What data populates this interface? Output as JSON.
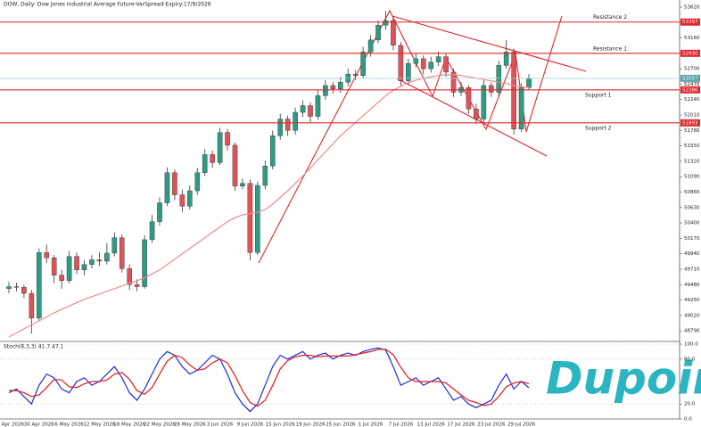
{
  "chart_data": [
    {
      "type": "candlestick",
      "title": "DOW, Daily: Dow Jones Industrial Average Future-VarSpread-Expiry:17/9/2026",
      "categories": [
        "24 Apr 2026",
        null,
        null,
        null,
        "30 Apr 2026",
        null,
        null,
        null,
        "6 May 2026",
        null,
        null,
        null,
        "12 May 2026",
        null,
        null,
        null,
        "18 May 2026",
        null,
        null,
        null,
        "22 May 2026",
        null,
        null,
        null,
        "28 May 2026",
        null,
        null,
        null,
        "3 Jun 2026",
        null,
        null,
        null,
        "9 Jun 2026",
        null,
        null,
        null,
        "15 Jun 2026",
        null,
        null,
        null,
        "19 Jun 2026",
        null,
        null,
        null,
        "25 Jun 2026",
        null,
        null,
        null,
        "1 Jul 2026",
        null,
        null,
        null,
        "7 Jul 2026",
        null,
        null,
        null,
        "13 Jul 2026",
        null,
        null,
        null,
        "17 Jul 2026",
        null,
        null,
        null,
        "23 Jul 2026",
        null,
        null,
        null,
        "29 Jul 2026",
        null
      ],
      "open": [
        49420,
        49450,
        49440,
        49350,
        48980,
        49960,
        49880,
        49620,
        49540,
        49900,
        49700,
        49780,
        49850,
        49830,
        49950,
        50180,
        49720,
        49480,
        49450,
        50150,
        50420,
        50700,
        51150,
        50820,
        50650,
        50880,
        51150,
        51420,
        51300,
        51750,
        51560,
        50950,
        50990,
        49960,
        50960,
        51250,
        51700,
        51950,
        51780,
        52050,
        52150,
        51990,
        52300,
        52450,
        52400,
        52500,
        52620,
        52600,
        52950,
        53130,
        53350,
        53420,
        53050,
        52520,
        52780,
        52850,
        52700,
        52800,
        52880,
        52650,
        52350,
        52420,
        52100,
        51950,
        52450,
        52350,
        52750,
        52950,
        51800,
        52420
      ],
      "high": [
        49520,
        49510,
        49480,
        49400,
        50020,
        50080,
        49920,
        49700,
        49980,
        49960,
        49850,
        49920,
        49960,
        50100,
        50260,
        50230,
        49780,
        49560,
        50220,
        50520,
        50780,
        51230,
        51200,
        50900,
        50960,
        51220,
        51500,
        51480,
        51820,
        51800,
        51600,
        51060,
        51050,
        51020,
        51330,
        51780,
        52030,
        52000,
        52120,
        52230,
        52200,
        52380,
        52530,
        52500,
        52580,
        52700,
        52680,
        53030,
        53200,
        53420,
        53560,
        53470,
        53100,
        52850,
        52930,
        52900,
        52880,
        52960,
        52920,
        52700,
        52500,
        52460,
        52180,
        52530,
        52500,
        52820,
        53130,
        53000,
        52480,
        52620
      ],
      "low": [
        49350,
        49380,
        49280,
        48750,
        48930,
        49800,
        49500,
        49420,
        49500,
        49640,
        49620,
        49720,
        49760,
        49780,
        49900,
        49660,
        49400,
        49380,
        49420,
        50100,
        50360,
        50650,
        50740,
        50560,
        50600,
        50820,
        51100,
        51220,
        51260,
        51480,
        50880,
        50900,
        49840,
        49920,
        50900,
        51200,
        51640,
        51700,
        51720,
        51980,
        51900,
        51940,
        52240,
        52330,
        52340,
        52440,
        52530,
        52560,
        52880,
        53080,
        53280,
        52980,
        52440,
        52460,
        52720,
        52620,
        52640,
        52740,
        52580,
        52280,
        52290,
        52030,
        51880,
        51900,
        52280,
        52300,
        52700,
        51720,
        51760,
        52380
      ],
      "close": [
        49450,
        49440,
        49350,
        48980,
        49960,
        49880,
        49620,
        49540,
        49900,
        49700,
        49780,
        49850,
        49830,
        49950,
        50180,
        49720,
        49480,
        49450,
        50150,
        50420,
        50700,
        51150,
        50820,
        50650,
        50880,
        51150,
        51420,
        51300,
        51750,
        51560,
        50950,
        50990,
        49960,
        50960,
        51250,
        51700,
        51950,
        51780,
        52050,
        52150,
        51990,
        52300,
        52450,
        52400,
        52500,
        52620,
        52600,
        52950,
        53130,
        53350,
        53420,
        53050,
        52520,
        52780,
        52850,
        52700,
        52800,
        52880,
        52650,
        52350,
        52420,
        52100,
        51950,
        52450,
        52350,
        52750,
        52950,
        51800,
        52420,
        52557
      ],
      "up_color": "#2e9c82",
      "down_color": "#e0525a",
      "overlays": [
        {
          "color": "#f08a8a",
          "values": [
            48700,
            48760,
            48820,
            48880,
            48940,
            49000,
            49060,
            49110,
            49160,
            49210,
            49260,
            49300,
            49340,
            49380,
            49420,
            49460,
            49500,
            49540,
            49580,
            49640,
            49700,
            49780,
            49860,
            49940,
            50020,
            50100,
            50180,
            50260,
            50340,
            50420,
            50480,
            50520,
            50540,
            50560,
            50600,
            50680,
            50780,
            50880,
            50990,
            51100,
            51220,
            51340,
            51460,
            51580,
            51700,
            51800,
            51900,
            52000,
            52100,
            52200,
            52300,
            52380,
            52440,
            52490,
            52530,
            52560,
            52580,
            52600,
            52610,
            52610,
            52600,
            52580,
            52560,
            52540,
            52520,
            52500,
            52480,
            52450,
            52430,
            52420
          ]
        }
      ],
      "levels": [
        {
          "label": "Resistance 2",
          "value": 53397,
          "color": "#e0262b"
        },
        {
          "label": "Resistance 1",
          "value": 52930,
          "color": "#e0262b"
        },
        {
          "label": "Support 1",
          "value": 52386,
          "color": "#e0262b"
        },
        {
          "label": "Support 2",
          "value": 51893,
          "color": "#e0262b"
        }
      ],
      "ylim": [
        48646,
        53726
      ],
      "yticks": [
        53620,
        53390,
        53160,
        52930,
        52700,
        52470,
        52240,
        52010,
        51780,
        51550,
        51320,
        51090,
        50860,
        50630,
        50400,
        50170,
        49940,
        49710,
        49480,
        49250,
        49020,
        48790
      ]
    },
    {
      "type": "line",
      "title": "Stoch(8,3,3) 41.7 47.1",
      "series": [
        {
          "color": "#1c2fd6",
          "values": [
            35,
            40,
            30,
            20,
            45,
            60,
            55,
            40,
            35,
            50,
            55,
            45,
            50,
            60,
            70,
            55,
            35,
            25,
            40,
            60,
            80,
            90,
            85,
            70,
            60,
            65,
            75,
            85,
            80,
            60,
            35,
            20,
            10,
            20,
            45,
            70,
            85,
            80,
            85,
            90,
            80,
            85,
            88,
            80,
            85,
            88,
            85,
            90,
            93,
            95,
            92,
            70,
            45,
            50,
            55,
            45,
            50,
            55,
            40,
            25,
            30,
            20,
            15,
            20,
            25,
            45,
            60,
            40,
            50,
            41.7
          ]
        },
        {
          "color": "#e31a1c",
          "values": [
            38,
            38,
            35,
            30,
            32,
            42,
            53,
            52,
            43,
            42,
            47,
            50,
            50,
            52,
            60,
            62,
            53,
            38,
            33,
            42,
            60,
            77,
            85,
            82,
            72,
            65,
            67,
            75,
            80,
            75,
            58,
            38,
            22,
            17,
            25,
            45,
            67,
            78,
            83,
            85,
            85,
            83,
            84,
            84,
            84,
            84,
            86,
            88,
            90,
            93,
            93,
            86,
            69,
            55,
            50,
            50,
            50,
            50,
            48,
            40,
            32,
            25,
            22,
            18,
            20,
            30,
            43,
            48,
            50,
            47.1
          ]
        }
      ],
      "ylim": [
        0,
        100
      ],
      "yticks": [
        {
          "value": 100,
          "label": "100.0"
        },
        {
          "value": 80,
          "label": "80.0"
        },
        {
          "value": 20,
          "label": "20.0"
        },
        {
          "value": 0,
          "label": "0.0"
        }
      ],
      "grid": true
    }
  ],
  "watermark": "Dupoin"
}
